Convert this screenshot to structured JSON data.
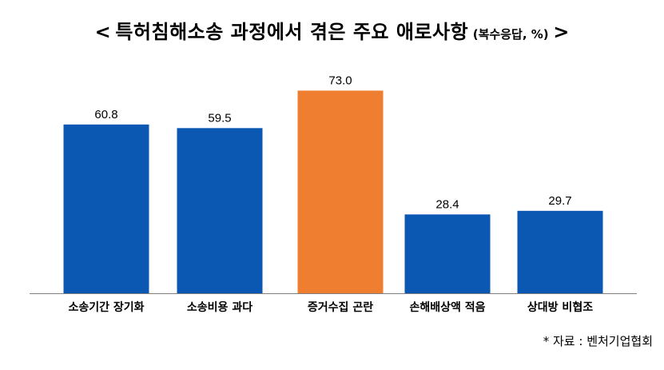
{
  "header": {
    "open": "<",
    "title": "특허침해소송 과정에서 겪은 주요 애로사항",
    "note": "(복수응답, %)",
    "close": ">"
  },
  "chart_data": {
    "type": "bar",
    "title": "특허침해소송 과정에서 겪은 주요 애로사항 (복수응답, %)",
    "categories": [
      "소송기간 장기화",
      "소송비용 과다",
      "증거수집 곤란",
      "손해배상액 적음",
      "상대방 비협조"
    ],
    "values": [
      60.8,
      59.5,
      73.0,
      28.4,
      29.7
    ],
    "value_labels": [
      "60.8",
      "59.5",
      "73.0",
      "28.4",
      "29.7"
    ],
    "colors": [
      "#0a58b2",
      "#0a58b2",
      "#ef7e31",
      "#0a58b2",
      "#0a58b2"
    ],
    "grid": false,
    "legend": "none",
    "ylim": [
      0,
      80
    ]
  },
  "footer": {
    "source": "* 자료 : 벤처기업협회"
  }
}
